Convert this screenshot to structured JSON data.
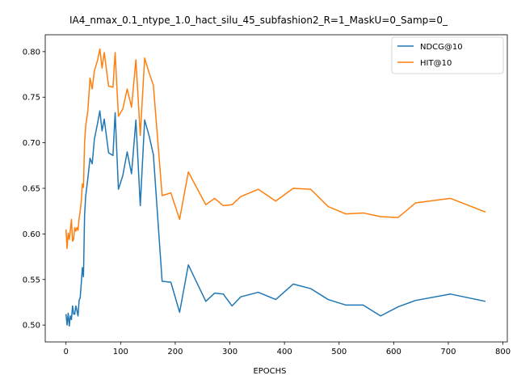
{
  "chart_data": {
    "type": "line",
    "title": "IA4_nmax_0.1_ntype_1.0_hact_silu_45_subfashion2_R=1_MaskU=0_Samp=0_",
    "xlabel": "EPOCHS",
    "ylabel": "",
    "xlim": [
      -38,
      808
    ],
    "ylim": [
      0.4815,
      0.8185
    ],
    "xticks": [
      0,
      100,
      200,
      300,
      400,
      500,
      600,
      700,
      800
    ],
    "yticks": [
      0.5,
      0.55,
      0.6,
      0.65,
      0.7,
      0.75,
      0.8
    ],
    "grid": false,
    "legend_position": "top-right",
    "series": [
      {
        "name": "NDCG@10",
        "color": "#1f77b4",
        "x": [
          0,
          2,
          4,
          6,
          8,
          10,
          12,
          14,
          16,
          18,
          20,
          22,
          24,
          26,
          28,
          30,
          32,
          34,
          36,
          40,
          44,
          48,
          52,
          58,
          62,
          66,
          70,
          78,
          86,
          90,
          96,
          104,
          112,
          120,
          128,
          136,
          144,
          152,
          160,
          176,
          192,
          208,
          224,
          240,
          256,
          272,
          288,
          304,
          320,
          352,
          384,
          416,
          448,
          480,
          512,
          544,
          576,
          608,
          640,
          704,
          768
        ],
        "y": [
          0.512,
          0.5,
          0.513,
          0.499,
          0.51,
          0.506,
          0.521,
          0.512,
          0.512,
          0.521,
          0.516,
          0.51,
          0.527,
          0.53,
          0.546,
          0.563,
          0.553,
          0.62,
          0.641,
          0.661,
          0.683,
          0.677,
          0.704,
          0.722,
          0.735,
          0.713,
          0.726,
          0.689,
          0.686,
          0.733,
          0.649,
          0.664,
          0.69,
          0.666,
          0.725,
          0.631,
          0.725,
          0.708,
          0.687,
          0.548,
          0.547,
          0.514,
          0.566,
          0.546,
          0.526,
          0.535,
          0.534,
          0.521,
          0.531,
          0.536,
          0.528,
          0.545,
          0.54,
          0.528,
          0.522,
          0.522,
          0.51,
          0.52,
          0.527,
          0.534,
          0.526
        ]
      },
      {
        "name": "HIT@10",
        "color": "#ff7f0e",
        "x": [
          0,
          2,
          4,
          6,
          8,
          10,
          12,
          14,
          16,
          18,
          20,
          22,
          24,
          26,
          28,
          30,
          32,
          34,
          36,
          40,
          44,
          48,
          52,
          58,
          62,
          66,
          70,
          78,
          86,
          90,
          96,
          104,
          112,
          120,
          128,
          136,
          144,
          152,
          160,
          176,
          192,
          208,
          224,
          240,
          256,
          272,
          288,
          304,
          320,
          352,
          384,
          416,
          448,
          480,
          512,
          544,
          576,
          608,
          640,
          704,
          768
        ],
        "y": [
          0.605,
          0.584,
          0.601,
          0.594,
          0.604,
          0.616,
          0.592,
          0.594,
          0.607,
          0.603,
          0.607,
          0.604,
          0.617,
          0.625,
          0.636,
          0.655,
          0.651,
          0.7,
          0.718,
          0.735,
          0.771,
          0.759,
          0.779,
          0.791,
          0.803,
          0.782,
          0.799,
          0.762,
          0.761,
          0.799,
          0.729,
          0.737,
          0.759,
          0.739,
          0.791,
          0.708,
          0.793,
          0.777,
          0.763,
          0.642,
          0.645,
          0.616,
          0.668,
          0.65,
          0.632,
          0.639,
          0.631,
          0.632,
          0.641,
          0.649,
          0.636,
          0.65,
          0.649,
          0.63,
          0.622,
          0.623,
          0.619,
          0.618,
          0.634,
          0.639,
          0.624
        ]
      }
    ]
  }
}
